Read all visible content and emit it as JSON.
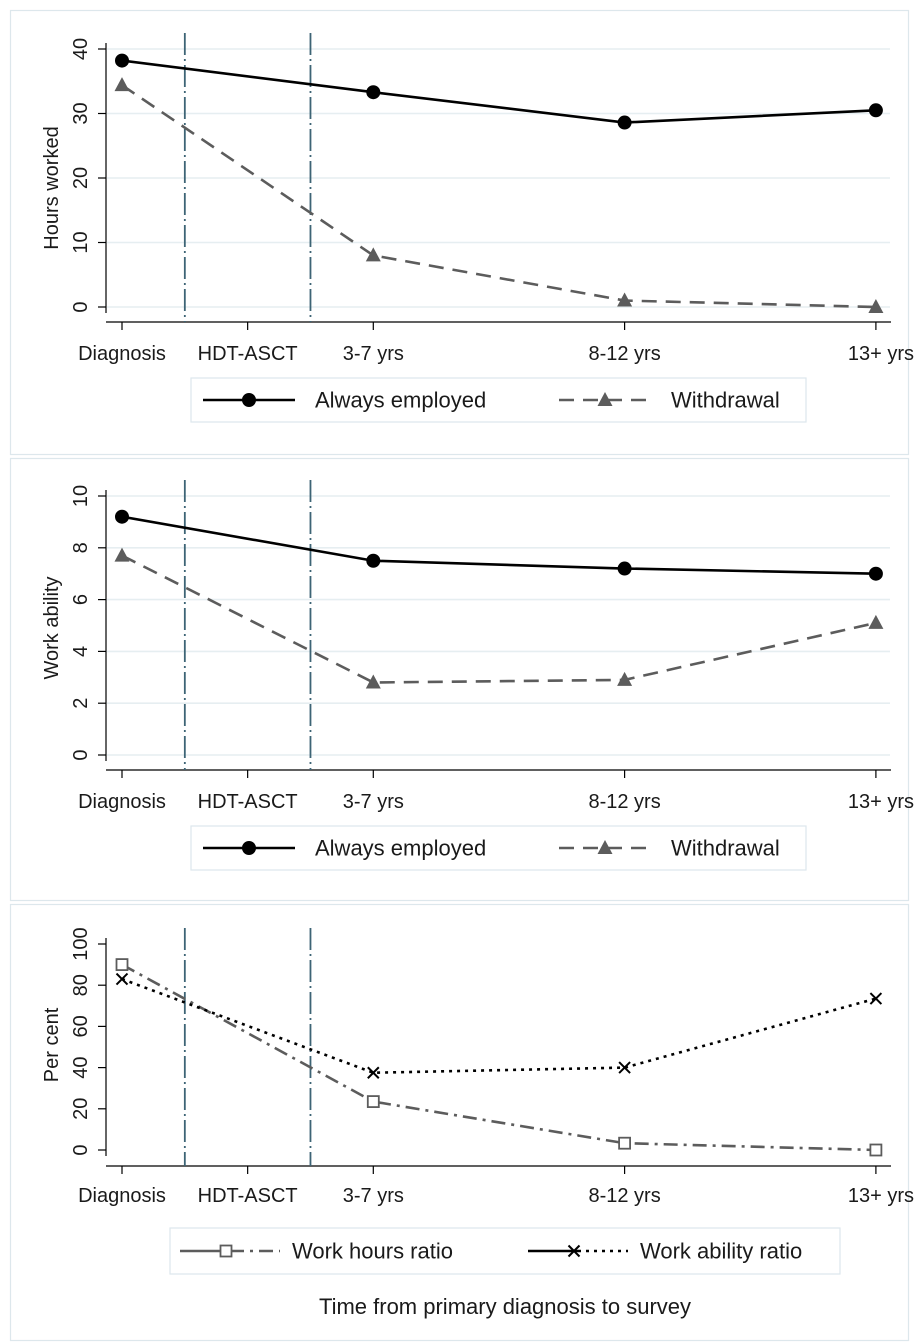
{
  "x_categories": [
    "Diagnosis",
    "HDT-ASCT",
    "3-7 yrs",
    "8-12 yrs",
    "13+ yrs"
  ],
  "x_tick_positions": [
    0,
    0.5,
    1,
    2,
    3
  ],
  "reference_lines": [
    0.25,
    0.75
  ],
  "colors": {
    "panel_border": "#dde7ec",
    "grid": "#e6eef1",
    "reference_line": "#3d6475",
    "series_black": "#000000",
    "series_gray": "#5c5c5c"
  },
  "xaxis_title": "Time from primary diagnosis to survey",
  "chart_data": [
    {
      "type": "line",
      "ylabel": "Hours worked",
      "xlabel": "",
      "ylim": [
        0,
        40
      ],
      "yticks": [
        0,
        10,
        20,
        30,
        40
      ],
      "grid": true,
      "legend_position": "bottom",
      "series": [
        {
          "name": "Always employed",
          "x": [
            0,
            1,
            2,
            3
          ],
          "values": [
            38.2,
            33.3,
            28.6,
            30.5
          ]
        },
        {
          "name": "Withdrawal",
          "x": [
            0,
            1,
            2,
            3
          ],
          "values": [
            34.4,
            8.0,
            1.0,
            0.0
          ]
        }
      ]
    },
    {
      "type": "line",
      "ylabel": "Work ability",
      "xlabel": "",
      "ylim": [
        0,
        10
      ],
      "yticks": [
        0,
        2,
        4,
        6,
        8,
        10
      ],
      "grid": true,
      "legend_position": "bottom",
      "series": [
        {
          "name": "Always employed",
          "x": [
            0,
            1,
            2,
            3
          ],
          "values": [
            9.2,
            7.5,
            7.2,
            7.0
          ]
        },
        {
          "name": "Withdrawal",
          "x": [
            0,
            1,
            2,
            3
          ],
          "values": [
            7.7,
            2.8,
            2.9,
            5.1
          ]
        }
      ]
    },
    {
      "type": "line",
      "ylabel": "Per cent",
      "xlabel": "Time from primary diagnosis to survey",
      "ylim": [
        0,
        100
      ],
      "yticks": [
        0,
        20,
        40,
        60,
        80,
        100
      ],
      "grid": false,
      "legend_position": "bottom",
      "series": [
        {
          "name": "Work hours ratio",
          "x": [
            0,
            1,
            2,
            3
          ],
          "values": [
            90,
            23.5,
            3.3,
            0
          ]
        },
        {
          "name": "Work ability ratio",
          "x": [
            0,
            1,
            2,
            3
          ],
          "values": [
            83,
            37.5,
            40,
            73.5
          ]
        }
      ]
    }
  ]
}
